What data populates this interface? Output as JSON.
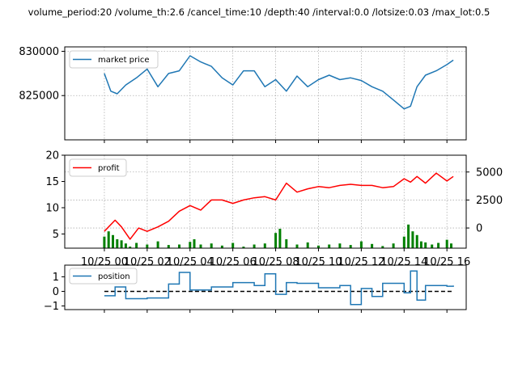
{
  "title": "volume_period:20 /volume_th:2.6 /cancel_time:10 /depth:40 /interval:0.0 /lotsize:0.03 /max_lot:0.5",
  "x_ticks": [
    "10/25 00",
    "10/25 02",
    "10/25 04",
    "10/25 06",
    "10/25 08",
    "10/25 10",
    "10/25 12",
    "10/25 14",
    "10/25 16"
  ],
  "colors": {
    "price": "#1f77b4",
    "profit": "#ff0000",
    "volume": "#008000",
    "position": "#1f77b4",
    "zero": "#000000"
  },
  "chart_data": [
    {
      "type": "line",
      "legend": "market price",
      "legend_loc": "upper left",
      "grid": true,
      "yticks": [
        "830000",
        "825000"
      ],
      "ylim": [
        820000,
        830500
      ],
      "xlim": [
        -1.85,
        16.9
      ],
      "series": [
        {
          "name": "market price",
          "x": [
            0,
            0.3,
            0.6,
            1,
            1.5,
            2,
            2.5,
            3,
            3.5,
            4,
            4.5,
            5,
            5.5,
            6,
            6.5,
            7,
            7.5,
            8,
            8.5,
            9,
            9.5,
            10,
            10.5,
            11,
            11.5,
            12,
            12.5,
            13,
            13.5,
            14,
            14.3,
            14.6,
            15,
            15.5,
            16,
            16.3
          ],
          "y": [
            827500,
            825500,
            825200,
            826200,
            827000,
            828000,
            826000,
            827500,
            827800,
            829500,
            828800,
            828300,
            827000,
            826200,
            827800,
            827800,
            826000,
            826800,
            825500,
            827200,
            826000,
            826800,
            827300,
            826800,
            827000,
            826700,
            826000,
            825500,
            824500,
            823500,
            823800,
            826000,
            827300,
            827800,
            828500,
            829000
          ]
        }
      ]
    },
    {
      "type": "line",
      "legend": "profit",
      "legend_loc": "upper left",
      "grid": true,
      "yticks_left": [
        "20",
        "15",
        "10",
        "5"
      ],
      "ylim_left": [
        2.3,
        20
      ],
      "yticks_right": [
        "5000",
        "2500",
        "0"
      ],
      "ylim_right": [
        -1800,
        6500
      ],
      "series": [
        {
          "name": "profit",
          "axis": "right",
          "x": [
            0,
            0.5,
            0.8,
            1.2,
            1.6,
            2,
            2.5,
            3,
            3.5,
            4,
            4.5,
            5,
            5.5,
            6,
            6.5,
            7,
            7.5,
            8,
            8.5,
            9,
            9.5,
            10,
            10.5,
            11,
            11.5,
            12,
            12.5,
            13,
            13.5,
            14,
            14.3,
            14.6,
            15,
            15.5,
            16,
            16.3
          ],
          "y": [
            -300,
            700,
            100,
            -1000,
            0,
            -300,
            100,
            600,
            1500,
            2000,
            1600,
            2500,
            2500,
            2200,
            2500,
            2700,
            2800,
            2500,
            4000,
            3200,
            3500,
            3700,
            3600,
            3800,
            3900,
            3800,
            3800,
            3600,
            3700,
            4400,
            4100,
            4600,
            4000,
            4900,
            4200,
            4600
          ]
        },
        {
          "name": "volume",
          "axis": "left",
          "type": "bar",
          "x": [
            0,
            0.2,
            0.4,
            0.6,
            0.8,
            1,
            1.2,
            1.5,
            2,
            2.5,
            3,
            3.5,
            4,
            4.2,
            4.5,
            5,
            5.5,
            6,
            6.5,
            7,
            7.5,
            8,
            8.2,
            8.5,
            9,
            9.5,
            10,
            10.5,
            11,
            11.5,
            12,
            12.5,
            13,
            13.5,
            14,
            14.2,
            14.4,
            14.6,
            14.8,
            15,
            15.3,
            15.6,
            16,
            16.2
          ],
          "y": [
            4.5,
            5.5,
            4.8,
            4.0,
            3.8,
            3.2,
            2.6,
            3.3,
            3.0,
            3.6,
            2.9,
            3.0,
            3.5,
            4.0,
            3.0,
            3.2,
            2.8,
            3.3,
            2.6,
            3.0,
            3.2,
            5.2,
            6.0,
            4.0,
            3.0,
            3.4,
            2.8,
            3.0,
            3.2,
            2.9,
            3.6,
            3.1,
            2.7,
            3.2,
            4.5,
            6.8,
            5.5,
            4.8,
            3.6,
            3.4,
            3.0,
            3.3,
            3.9,
            3.2
          ]
        }
      ]
    },
    {
      "type": "line",
      "legend": "position",
      "legend_loc": "upper left",
      "grid": false,
      "yticks": [
        "1",
        "0",
        "−1"
      ],
      "ylim": [
        -1.25,
        1.8
      ],
      "series": [
        {
          "name": "position",
          "x": [
            0,
            0.5,
            1,
            2,
            3,
            3.5,
            4,
            5,
            6,
            7,
            7.5,
            8,
            8.5,
            9,
            10,
            11,
            11.5,
            12,
            12.5,
            13,
            14,
            14.3,
            14.6,
            15,
            16,
            16.3
          ],
          "y": [
            -0.3,
            0.3,
            -0.5,
            -0.45,
            0.5,
            1.3,
            0.1,
            0.3,
            0.6,
            0.4,
            1.2,
            -0.2,
            0.6,
            0.55,
            0.25,
            0.4,
            -0.9,
            0.2,
            -0.35,
            0.55,
            -0.1,
            1.4,
            -0.6,
            0.4,
            0.35,
            0.4
          ]
        },
        {
          "name": "zero",
          "y": 0
        }
      ]
    }
  ]
}
